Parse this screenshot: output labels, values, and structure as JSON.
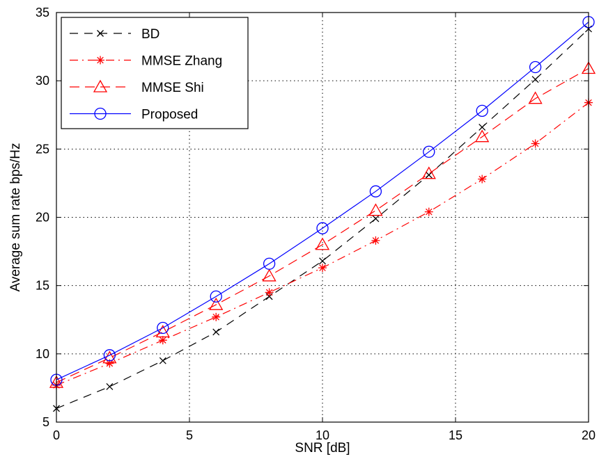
{
  "chart_data": {
    "type": "line",
    "title": "",
    "xlabel": "SNR [dB]",
    "ylabel": "Average sum rate bps/Hz",
    "xlim": [
      0,
      20
    ],
    "ylim": [
      5,
      35
    ],
    "xticks": [
      0,
      5,
      10,
      15,
      20
    ],
    "yticks": [
      5,
      10,
      15,
      20,
      25,
      30,
      35
    ],
    "grid": true,
    "legend_position": "top-left",
    "x": [
      0,
      2,
      4,
      6,
      8,
      10,
      12,
      14,
      16,
      18,
      20
    ],
    "series": [
      {
        "name": "BD",
        "values": [
          6.0,
          7.6,
          9.5,
          11.6,
          14.2,
          16.8,
          19.9,
          23.1,
          26.6,
          30.1,
          33.8
        ],
        "color": "#000000",
        "marker": "x",
        "dash": "long-dash"
      },
      {
        "name": "MMSE Zhang",
        "values": [
          7.7,
          9.3,
          11.0,
          12.7,
          14.5,
          16.3,
          18.3,
          20.4,
          22.8,
          25.4,
          28.4
        ],
        "color": "#ff0000",
        "marker": "asterisk",
        "dash": "dash-dot"
      },
      {
        "name": "MMSE Shi",
        "values": [
          7.9,
          9.7,
          11.6,
          13.6,
          15.7,
          18.0,
          20.5,
          23.2,
          25.9,
          28.7,
          30.9
        ],
        "color": "#ff0000",
        "marker": "triangle",
        "dash": "dash"
      },
      {
        "name": "Proposed",
        "values": [
          8.1,
          9.9,
          11.9,
          14.2,
          16.6,
          19.2,
          21.9,
          24.8,
          27.8,
          31.0,
          34.3
        ],
        "color": "#0000ff",
        "marker": "circle",
        "dash": "solid"
      }
    ]
  }
}
